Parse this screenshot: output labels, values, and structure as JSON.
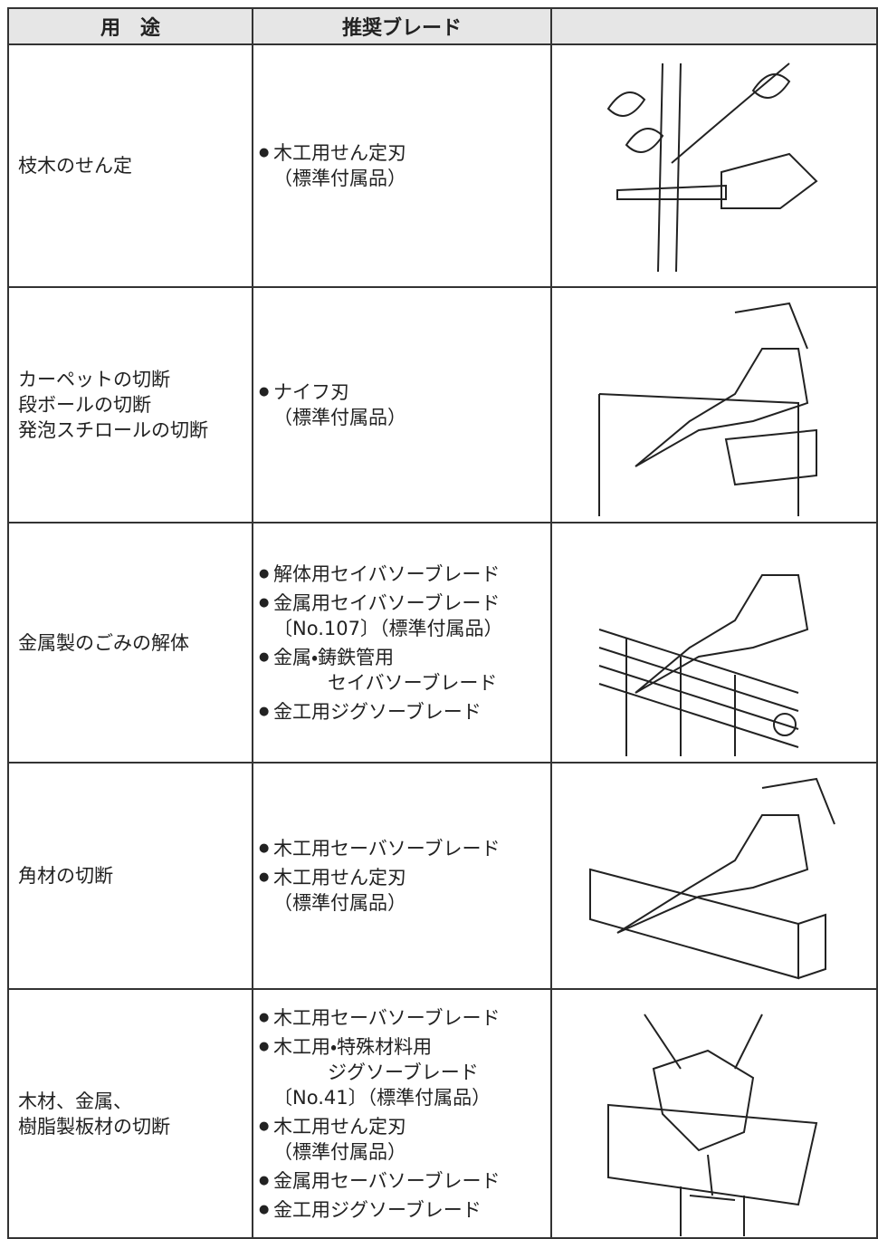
{
  "table": {
    "header": [
      "用　途",
      "推奨ブレード"
    ],
    "rows": [
      {
        "use": [
          "枝木のせん定"
        ],
        "blades": [
          [
            "木工用せん定刃",
            "（標準付属品）"
          ]
        ]
      },
      {
        "use": [
          "カーペットの切断",
          "段ボールの切断",
          "発泡スチロールの切断"
        ],
        "blades": [
          [
            "ナイフ刃",
            "（標準付属品）"
          ]
        ]
      },
      {
        "use": [
          "金属製のごみの解体"
        ],
        "blades": [
          [
            "解体用セイバソーブレード"
          ],
          [
            "金属用セイバソーブレード",
            "〔No.107〕（標準付属品）"
          ],
          [
            "金属・鋳鉄管用",
            "セイバソーブレード"
          ],
          [
            "金工用ジグソーブレード"
          ]
        ]
      },
      {
        "use": [
          "角材の切断"
        ],
        "blades": [
          [
            "木工用セーバソーブレード"
          ],
          [
            "木工用せん定刃",
            "（標準付属品）"
          ]
        ]
      },
      {
        "use": [
          "木材、金属、",
          "樹脂製板材の切断"
        ],
        "blades": [
          [
            "木工用セーバソーブレード"
          ],
          [
            "木工用・特殊材料用",
            "ジグソーブレード",
            "〔No.41〕（標準付属品）"
          ],
          [
            "木工用せん定刃",
            "（標準付属品）"
          ],
          [
            "金属用セーバソーブレード"
          ],
          [
            "金工用ジグソーブレード"
          ]
        ]
      }
    ]
  }
}
